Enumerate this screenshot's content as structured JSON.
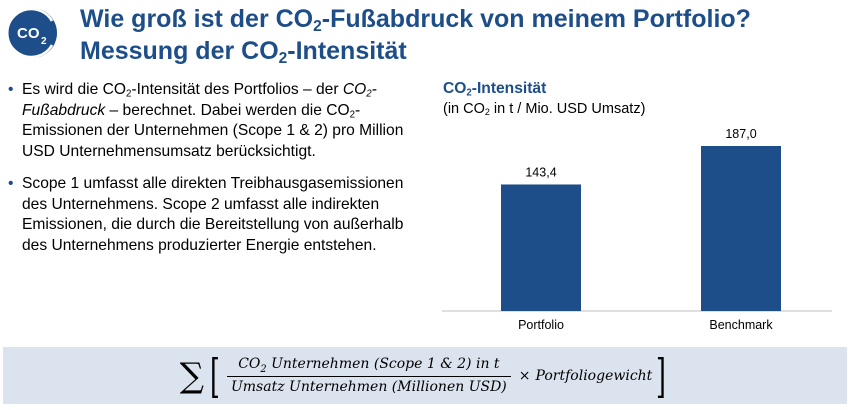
{
  "logo": {
    "text": "CO",
    "sub": "2"
  },
  "header": {
    "line1_pre": "Wie groß ist der CO",
    "line1_sub": "2",
    "line1_post": "-Fußabdruck von meinem Portfolio?",
    "line2_pre": "Messung der CO",
    "line2_sub": "2",
    "line2_post": "-Intensität"
  },
  "bullets": {
    "b1_a": "Es wird die CO",
    "b1_sub1": "2",
    "b1_b": "-Intensität des Portfolios – der ",
    "b1_italic": "CO",
    "b1_sub2": "2",
    "b1_italic2": "-Fußabdruck",
    "b1_c": " – berechnet. Dabei werden die CO",
    "b1_sub3": "2",
    "b1_d": "-Emissionen der Unternehmen (Scope 1 & 2) pro Million USD Unternehmensumsatz berücksichtigt.",
    "b2": "Scope 1 umfasst alle direkten Treibhausgasemissionen des Unternehmens. Scope 2 umfasst alle indirekten Emissionen, die durch die Bereitstellung von außerhalb des Unternehmens produzierter Energie entstehen.",
    "dot": "•"
  },
  "chart_data": {
    "type": "bar",
    "title_pre": "CO",
    "title_sub": "2",
    "title_post": "-Intensität",
    "subtitle_pre": "(in CO",
    "subtitle_sub": "2",
    "subtitle_post": " in t / Mio. USD Umsatz)",
    "categories": [
      "Portfolio",
      "Benchmark"
    ],
    "values": [
      143.4,
      187.0
    ],
    "value_labels": [
      "143,4",
      "187,0"
    ],
    "ylim": [
      0,
      187.0
    ],
    "grid": false,
    "bar_color": "#1d4e89"
  },
  "formula": {
    "sigma": "∑",
    "open": "[",
    "num_pre": "CO",
    "num_sub": "2",
    "num_post": " Unternehmen (Scope 1 & 2) in t",
    "den": "Umsatz Unternehmen (Millionen USD)",
    "times": "×",
    "weight": "Portfoliogewicht",
    "close": "]"
  },
  "colors": {
    "accent": "#1d4e89",
    "formula_bg": "#dbe3ee"
  }
}
